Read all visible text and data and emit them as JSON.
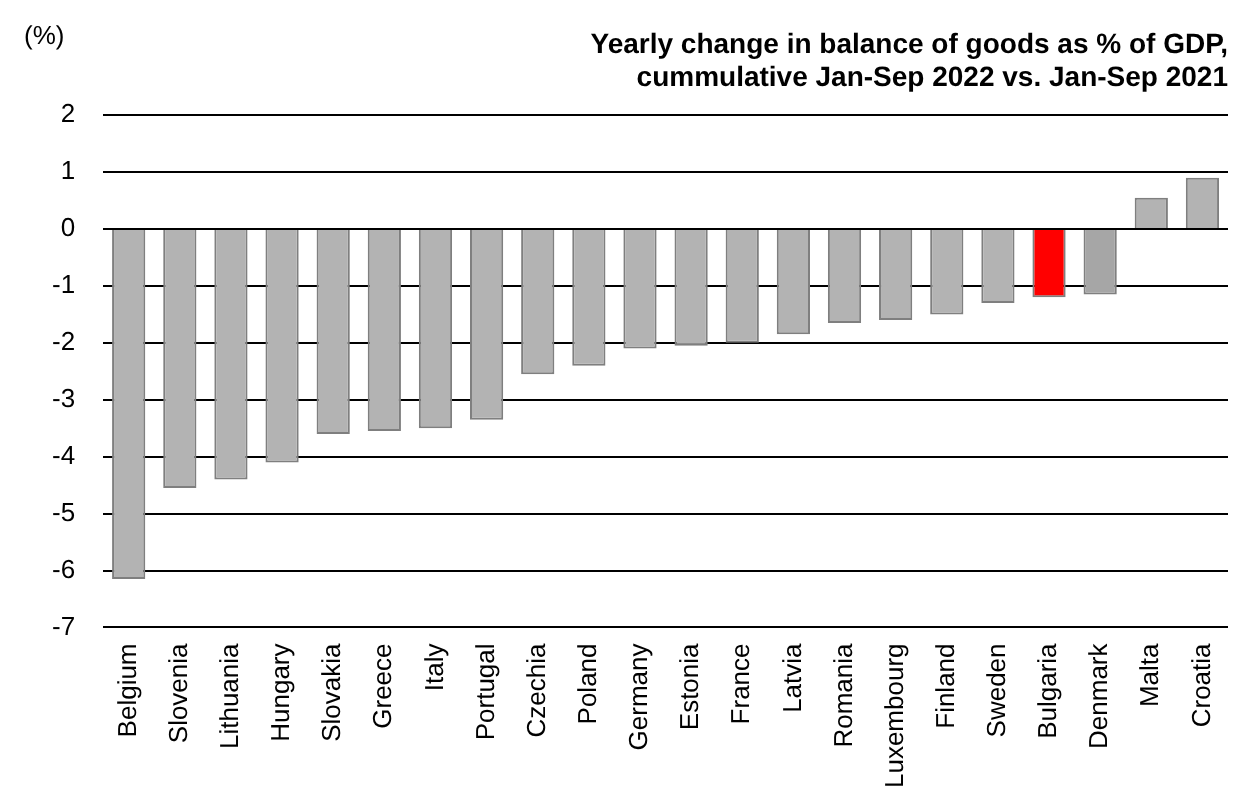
{
  "chart_data": {
    "type": "bar",
    "title": "Yearly change in balance of goods as % of GDP, cummulative Jan-Sep 2022 vs. Jan-Sep 2021",
    "ylabel": "(%)",
    "categories": [
      "Belgium",
      "Slovenia",
      "Lithuania",
      "Hungary",
      "Slovakia",
      "Greece",
      "Italy",
      "Portugal",
      "Czechia",
      "Poland",
      "Germany",
      "Estonia",
      "France",
      "Latvia",
      "Romania",
      "Luxembourg",
      "Finland",
      "Sweden",
      "Bulgaria",
      "Denmark",
      "Malta",
      "Croatia"
    ],
    "values": [
      -6.15,
      -4.55,
      -4.4,
      -4.1,
      -3.6,
      -3.55,
      -3.5,
      -3.35,
      -2.55,
      -2.4,
      -2.1,
      -2.05,
      -2.0,
      -1.85,
      -1.65,
      -1.6,
      -1.5,
      -1.3,
      -1.2,
      -1.15,
      0.55,
      0.9
    ],
    "colors": [
      "#b3b3b3",
      "#b3b3b3",
      "#b3b3b3",
      "#b3b3b3",
      "#b3b3b3",
      "#b3b3b3",
      "#b3b3b3",
      "#b3b3b3",
      "#b3b3b3",
      "#b3b3b3",
      "#b3b3b3",
      "#b3b3b3",
      "#b3b3b3",
      "#b3b3b3",
      "#b3b3b3",
      "#b3b3b3",
      "#b3b3b3",
      "#b3b3b3",
      "#ff0000",
      "#a6a6a6",
      "#b3b3b3",
      "#b3b3b3"
    ],
    "ylim": [
      -7,
      2
    ],
    "yticks": [
      -7,
      -6,
      -5,
      -4,
      -3,
      -2,
      -1,
      0,
      1,
      2
    ],
    "grid": "y"
  }
}
